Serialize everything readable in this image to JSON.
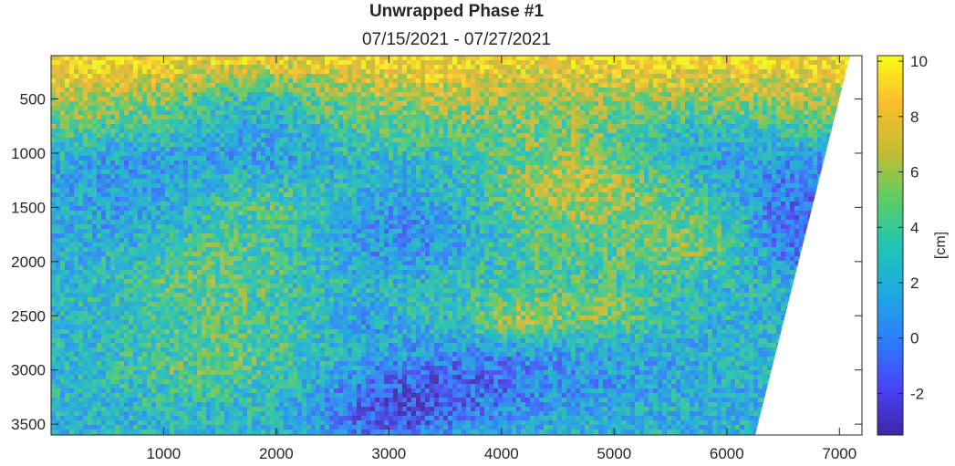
{
  "chart_data": {
    "type": "heatmap",
    "title": "Unwrapped Phase #1",
    "subtitle": "07/15/2021 - 07/27/2021",
    "xlabel": "",
    "ylabel": "",
    "x_ticks": [
      1000,
      2000,
      3000,
      4000,
      5000,
      6000,
      7000
    ],
    "y_ticks": [
      500,
      1000,
      1500,
      2000,
      2500,
      3000,
      3500
    ],
    "xlim": [
      1,
      7200
    ],
    "ylim": [
      100,
      3600
    ],
    "y_direction": "reversed",
    "colorbar": {
      "label": "[cm]",
      "ticks": [
        -2,
        0,
        2,
        4,
        6,
        8,
        10
      ],
      "range": [
        -3.5,
        10.2
      ],
      "colormap": "parula"
    },
    "colormap_stops": [
      "#3e26a8",
      "#4743f8",
      "#2c7efe",
      "#1caadf",
      "#20c5b5",
      "#5ecd62",
      "#c7bd33",
      "#fbbd2c",
      "#f9fb14"
    ]
  }
}
